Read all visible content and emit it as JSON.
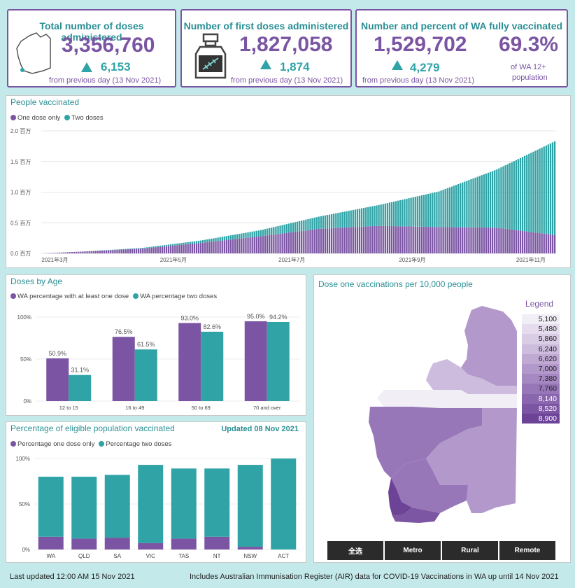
{
  "kpi": {
    "total": {
      "title": "Total number of doses administered",
      "value": "3,356,760",
      "delta": "6,153",
      "note": "from previous day (13 Nov 2021)"
    },
    "first": {
      "title": "Number of first doses administered",
      "value": "1,827,058",
      "delta": "1,874",
      "note": "from previous day (13 Nov 2021)"
    },
    "full": {
      "title": "Number and percent of WA fully vaccinated",
      "value": "1,529,702",
      "percent": "69.3%",
      "delta": "4,279",
      "note": "from previous day (13 Nov 2021)",
      "pop_note_1": "of WA 12+",
      "pop_note_2": "population"
    }
  },
  "people_vaccinated": {
    "title": "People vaccinated",
    "legend": [
      "One dose only",
      "Two doses"
    ],
    "chart_data": {
      "type": "bar",
      "stacked": true,
      "title": "People vaccinated",
      "y_ticks": [
        "0.0 百万",
        "0.5 百万",
        "1.0 百万",
        "1.5 百万",
        "2.0 百万"
      ],
      "x_ticks": [
        "2021年3月",
        "2021年5月",
        "2021年7月",
        "2021年9月",
        "2021年11月"
      ],
      "ylim": [
        0,
        2.0
      ],
      "y_unit": "百万",
      "x": [
        "2021-02-22",
        "2021-03-15",
        "2021-04-15",
        "2021-05-15",
        "2021-06-15",
        "2021-07-15",
        "2021-08-15",
        "2021-09-15",
        "2021-10-15",
        "2021-11-14"
      ],
      "series": [
        {
          "name": "One dose only",
          "values": [
            0.0,
            0.03,
            0.08,
            0.17,
            0.28,
            0.4,
            0.45,
            0.43,
            0.42,
            0.3
          ]
        },
        {
          "name": "Two doses",
          "values": [
            0.0,
            0.0,
            0.01,
            0.04,
            0.1,
            0.2,
            0.34,
            0.58,
            0.95,
            1.53
          ]
        }
      ]
    }
  },
  "doses_by_age": {
    "title": "Doses by Age",
    "legend": [
      "WA percentage with at least one dose",
      "WA percentage two doses"
    ],
    "chart_data": {
      "type": "bar",
      "title": "Doses by Age",
      "categories": [
        "12 to 15",
        "16 to 49",
        "50 to 69",
        "70 and over"
      ],
      "y_ticks": [
        "0%",
        "50%",
        "100%"
      ],
      "ylim": [
        0,
        100
      ],
      "series": [
        {
          "name": "WA percentage with at least one dose",
          "values": [
            50.9,
            76.5,
            93.0,
            95.0
          ],
          "labels": [
            "50.9%",
            "76.5%",
            "93.0%",
            "95.0%"
          ]
        },
        {
          "name": "WA percentage two doses",
          "values": [
            31.1,
            61.5,
            82.6,
            94.2
          ],
          "labels": [
            "31.1%",
            "61.5%",
            "82.6%",
            "94.2%"
          ]
        }
      ]
    }
  },
  "eligible": {
    "title": "Percentage of eligible population vaccinated",
    "updated": "Updated 08 Nov 2021",
    "legend": [
      "Percentage one dose only",
      "Percentage two doses"
    ],
    "chart_data": {
      "type": "bar",
      "stacked": true,
      "title": "Percentage of eligible population vaccinated",
      "categories": [
        "WA",
        "QLD",
        "SA",
        "VIC",
        "TAS",
        "NT",
        "NSW",
        "ACT"
      ],
      "y_ticks": [
        "0%",
        "50%",
        "100%"
      ],
      "ylim": [
        0,
        100
      ],
      "series": [
        {
          "name": "Percentage one dose only",
          "values": [
            14,
            12,
            13,
            7,
            12,
            14,
            3,
            0
          ]
        },
        {
          "name": "Percentage two doses",
          "values": [
            66,
            68,
            69,
            86,
            77,
            75,
            90,
            100
          ]
        }
      ]
    }
  },
  "map": {
    "title": "Dose one vaccinations per 10,000 people",
    "legend_title": "Legend",
    "legend": [
      "5,100",
      "5,480",
      "5,860",
      "6,240",
      "6,620",
      "7,000",
      "7,380",
      "7,760",
      "8,140",
      "8,520",
      "8,900"
    ],
    "legend_colors": [
      "#f1eef6",
      "#e5ddee",
      "#d9cde6",
      "#cdbcdd",
      "#c0aad4",
      "#b399cb",
      "#a688c2",
      "#9877b8",
      "#8a66ae",
      "#7c55a3",
      "#6d4398"
    ],
    "buttons": [
      "全选",
      "Metro",
      "Rural",
      "Remote"
    ]
  },
  "footer": {
    "updated": "Last updated 12:00 AM 15 Nov 2021",
    "source": "Includes Australian Immunisation Register (AIR) data for COVID-19 Vaccinations in WA up until 14 Nov 2021"
  },
  "colors": {
    "purple": "#7b55a3",
    "teal": "#2fa3a6"
  }
}
